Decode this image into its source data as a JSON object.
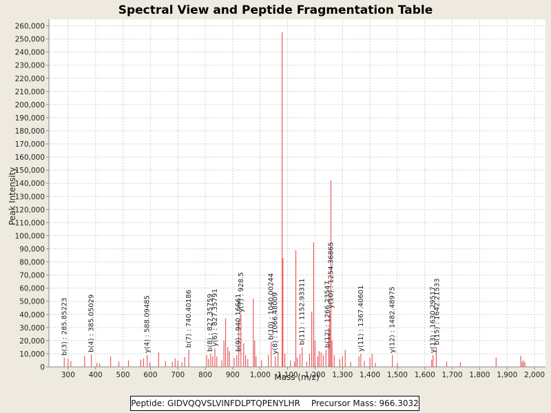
{
  "chart_data": {
    "type": "bar",
    "title": "Spectral View and Peptide Fragmentation Table",
    "xlabel": "Mass (m/z)",
    "ylabel": "Peak Intensity",
    "xlim": [
      230,
      2040
    ],
    "ylim": [
      0,
      265000
    ],
    "grid": true,
    "x_ticks": [
      300,
      400,
      500,
      600,
      700,
      800,
      900,
      1000,
      1100,
      1200,
      1300,
      1400,
      1500,
      1600,
      1700,
      1800,
      1900,
      2000
    ],
    "x_tick_labels": [
      "300",
      "400",
      "500",
      "600",
      "700",
      "800",
      "900",
      "1,000",
      "1,100",
      "1,200",
      "1,300",
      "1,400",
      "1,500",
      "1,600",
      "1,700",
      "1,800",
      "1,900",
      "2,000"
    ],
    "y_ticks": [
      0,
      10000,
      20000,
      30000,
      40000,
      50000,
      60000,
      70000,
      80000,
      90000,
      100000,
      110000,
      120000,
      130000,
      140000,
      150000,
      160000,
      170000,
      180000,
      190000,
      200000,
      210000,
      220000,
      230000,
      240000,
      250000,
      260000
    ],
    "y_tick_labels": [
      "0",
      "10,000",
      "20,000",
      "30,000",
      "40,000",
      "50,000",
      "60,000",
      "70,000",
      "80,000",
      "90,000",
      "100,000",
      "110,000",
      "120,000",
      "130,000",
      "140,000",
      "150,000",
      "160,000",
      "170,000",
      "180,000",
      "190,000",
      "200,000",
      "210,000",
      "220,000",
      "230,000",
      "240,000",
      "250,000",
      "260,000"
    ],
    "bar_color": "#e8595c",
    "peaks": [
      {
        "mz": 285.9,
        "intensity": 7000
      },
      {
        "mz": 300,
        "intensity": 6000
      },
      {
        "mz": 310,
        "intensity": 4500
      },
      {
        "mz": 360,
        "intensity": 8500
      },
      {
        "mz": 385,
        "intensity": 9500
      },
      {
        "mz": 405,
        "intensity": 3000
      },
      {
        "mz": 415,
        "intensity": 2500
      },
      {
        "mz": 455,
        "intensity": 8000
      },
      {
        "mz": 485,
        "intensity": 4000
      },
      {
        "mz": 520,
        "intensity": 5000
      },
      {
        "mz": 565,
        "intensity": 5500
      },
      {
        "mz": 575,
        "intensity": 6500
      },
      {
        "mz": 588,
        "intensity": 9000
      },
      {
        "mz": 598,
        "intensity": 3500
      },
      {
        "mz": 630,
        "intensity": 11000
      },
      {
        "mz": 655,
        "intensity": 4500
      },
      {
        "mz": 680,
        "intensity": 4000
      },
      {
        "mz": 690,
        "intensity": 6500
      },
      {
        "mz": 700,
        "intensity": 5000
      },
      {
        "mz": 715,
        "intensity": 3500
      },
      {
        "mz": 725,
        "intensity": 7500
      },
      {
        "mz": 740,
        "intensity": 13000
      },
      {
        "mz": 805,
        "intensity": 9000
      },
      {
        "mz": 812,
        "intensity": 6000
      },
      {
        "mz": 820,
        "intensity": 10000
      },
      {
        "mz": 827,
        "intensity": 8000
      },
      {
        "mz": 835,
        "intensity": 14000
      },
      {
        "mz": 842,
        "intensity": 8000
      },
      {
        "mz": 860,
        "intensity": 5000
      },
      {
        "mz": 868,
        "intensity": 20000
      },
      {
        "mz": 874,
        "intensity": 37000
      },
      {
        "mz": 882,
        "intensity": 15000
      },
      {
        "mz": 888,
        "intensity": 12000
      },
      {
        "mz": 905,
        "intensity": 7000
      },
      {
        "mz": 915,
        "intensity": 9000
      },
      {
        "mz": 922,
        "intensity": 36000
      },
      {
        "mz": 930,
        "intensity": 40000
      },
      {
        "mz": 940,
        "intensity": 18000
      },
      {
        "mz": 947,
        "intensity": 9000
      },
      {
        "mz": 955,
        "intensity": 6000
      },
      {
        "mz": 975,
        "intensity": 52000
      },
      {
        "mz": 980,
        "intensity": 20000
      },
      {
        "mz": 985,
        "intensity": 8000
      },
      {
        "mz": 1005,
        "intensity": 5000
      },
      {
        "mz": 1030,
        "intensity": 9000
      },
      {
        "mz": 1040,
        "intensity": 19000
      },
      {
        "mz": 1055,
        "intensity": 8000
      },
      {
        "mz": 1065,
        "intensity": 10000
      },
      {
        "mz": 1080,
        "intensity": 255000
      },
      {
        "mz": 1083,
        "intensity": 83000
      },
      {
        "mz": 1090,
        "intensity": 10000
      },
      {
        "mz": 1110,
        "intensity": 5000
      },
      {
        "mz": 1125,
        "intensity": 4000
      },
      {
        "mz": 1130,
        "intensity": 89000
      },
      {
        "mz": 1135,
        "intensity": 7000
      },
      {
        "mz": 1145,
        "intensity": 10000
      },
      {
        "mz": 1153,
        "intensity": 15000
      },
      {
        "mz": 1170,
        "intensity": 4000
      },
      {
        "mz": 1180,
        "intensity": 10000
      },
      {
        "mz": 1188,
        "intensity": 42000
      },
      {
        "mz": 1195,
        "intensity": 95000
      },
      {
        "mz": 1200,
        "intensity": 20000
      },
      {
        "mz": 1210,
        "intensity": 8000
      },
      {
        "mz": 1215,
        "intensity": 12000
      },
      {
        "mz": 1222,
        "intensity": 11000
      },
      {
        "mz": 1230,
        "intensity": 9000
      },
      {
        "mz": 1240,
        "intensity": 13000
      },
      {
        "mz": 1250,
        "intensity": 30000
      },
      {
        "mz": 1254,
        "intensity": 43000
      },
      {
        "mz": 1258,
        "intensity": 142000
      },
      {
        "mz": 1262,
        "intensity": 20000
      },
      {
        "mz": 1270,
        "intensity": 9000
      },
      {
        "mz": 1290,
        "intensity": 6000
      },
      {
        "mz": 1300,
        "intensity": 8000
      },
      {
        "mz": 1310,
        "intensity": 13000
      },
      {
        "mz": 1330,
        "intensity": 4000
      },
      {
        "mz": 1360,
        "intensity": 8000
      },
      {
        "mz": 1367,
        "intensity": 10000
      },
      {
        "mz": 1380,
        "intensity": 4500
      },
      {
        "mz": 1400,
        "intensity": 7000
      },
      {
        "mz": 1408,
        "intensity": 10000
      },
      {
        "mz": 1420,
        "intensity": 3000
      },
      {
        "mz": 1482,
        "intensity": 9000
      },
      {
        "mz": 1500,
        "intensity": 3000
      },
      {
        "mz": 1625,
        "intensity": 5500
      },
      {
        "mz": 1630,
        "intensity": 9000
      },
      {
        "mz": 1642,
        "intensity": 15000
      },
      {
        "mz": 1680,
        "intensity": 4000
      },
      {
        "mz": 1730,
        "intensity": 3500
      },
      {
        "mz": 1860,
        "intensity": 7000
      },
      {
        "mz": 1950,
        "intensity": 8500
      },
      {
        "mz": 1955,
        "intensity": 4000
      },
      {
        "mz": 1960,
        "intensity": 5000
      },
      {
        "mz": 1965,
        "intensity": 3500
      }
    ],
    "annotations": [
      {
        "label": "b(3) : 285.85223",
        "mz": 285.9,
        "anchor": 7000
      },
      {
        "label": "b(4) : 385.05029",
        "mz": 385,
        "anchor": 9500
      },
      {
        "label": "y(4) : 588.09485",
        "mz": 588,
        "anchor": 9000
      },
      {
        "label": "b(7) : 740.40186",
        "mz": 740,
        "anchor": 13000
      },
      {
        "label": "b(8) : 827.35759",
        "mz": 818,
        "anchor": 10000
      },
      {
        "label": "y(6) : 827.35791",
        "mz": 835,
        "anchor": 14000
      },
      {
        "label": "b(9) : 940.16661",
        "mz": 920,
        "anchor": 10000
      },
      {
        "label": "y(7) : 928.5",
        "mz": 930,
        "anchor": 40000
      },
      {
        "label": "b(10) : 1040.00244",
        "mz": 1040,
        "anchor": 19000
      },
      {
        "label": "y(8) : 1066.48009",
        "mz": 1055,
        "anchor": 8000
      },
      {
        "label": "b(11) : 1152.93311",
        "mz": 1153,
        "anchor": 15000
      },
      {
        "label": "b(12) : 1266.23547",
        "mz": 1245,
        "anchor": 13000
      },
      {
        "label": "y(10) : 1254.36865",
        "mz": 1258,
        "anchor": 43000
      },
      {
        "label": "y(11) : 1367.40601",
        "mz": 1367,
        "anchor": 10000
      },
      {
        "label": "y(12) : 1482.48975",
        "mz": 1482,
        "anchor": 9000
      },
      {
        "label": "y(13) : 1630.29517",
        "mz": 1630,
        "anchor": 9000
      },
      {
        "label": "b(15) : 1642.21533",
        "mz": 1645,
        "anchor": 15000
      }
    ]
  },
  "footer": {
    "peptide": "Peptide: GIDVQQVSLVINFDLPTQPENYLHR",
    "precursor": "Precursor Mass: 966.3032"
  }
}
